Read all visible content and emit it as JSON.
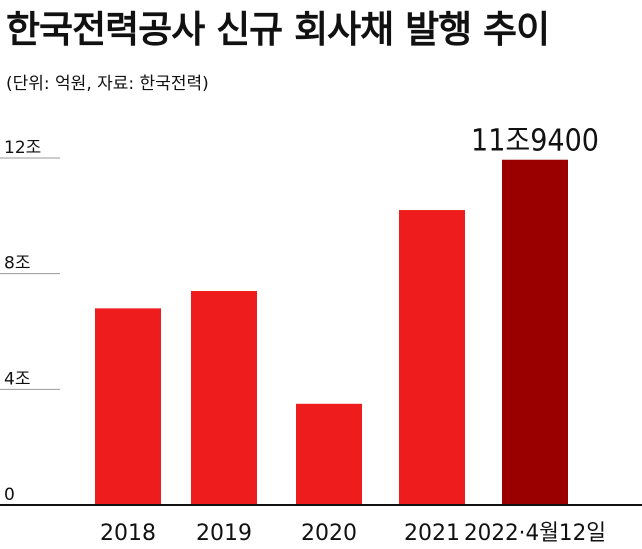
{
  "header": {
    "title": "한국전력공사 신규 회사채 발행 추이",
    "subtitle": "(단위: 억원, 자료: 한국전력)"
  },
  "chart_data": {
    "type": "bar",
    "title": "한국전력공사 신규 회사채 발행 추이",
    "subtitle": "(단위: 억원, 자료: 한국전력)",
    "categories": [
      "2018",
      "2019",
      "2020",
      "2021",
      "2022·4월12일"
    ],
    "values": [
      68000,
      74000,
      35000,
      102000,
      119400
    ],
    "ylim": [
      0,
      120000
    ],
    "y_ticks": [
      {
        "value": 0,
        "label": "0"
      },
      {
        "value": 40000,
        "label": "4조"
      },
      {
        "value": 80000,
        "label": "8조"
      },
      {
        "value": 120000,
        "label": "12조"
      }
    ],
    "data_labels": [
      {
        "index": 4,
        "label": "11조9400"
      }
    ],
    "colors": {
      "bar": "#ee1c1c",
      "highlight_bar": "#9b0000",
      "axis": "#111111",
      "grid": "#999999"
    },
    "grid": false,
    "legend": "none"
  }
}
